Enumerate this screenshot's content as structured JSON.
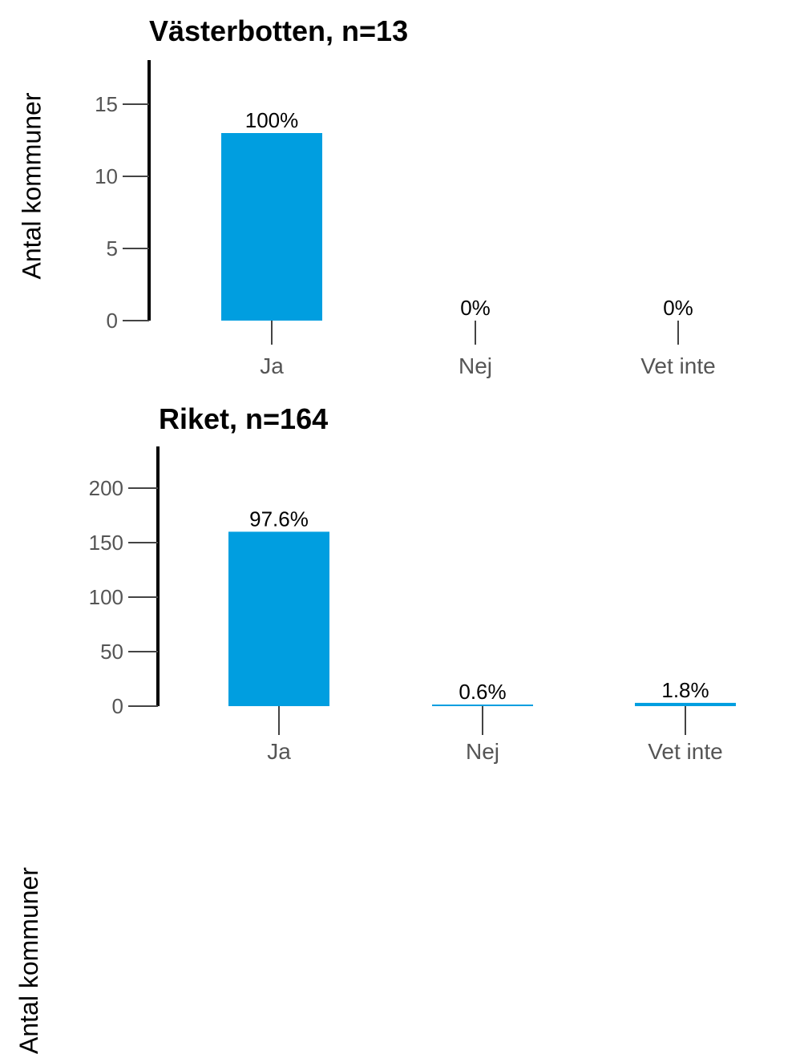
{
  "chart_data": [
    {
      "type": "bar",
      "title": "Västerbotten, n=13",
      "ylabel": "Antal kommuner",
      "xlabel": "",
      "categories": [
        "Ja",
        "Nej",
        "Vet inte"
      ],
      "values": [
        13,
        0,
        0
      ],
      "data_labels": [
        "100%",
        "0%",
        "0%"
      ],
      "yticks": [
        0,
        5,
        10,
        15
      ],
      "ylim": [
        0,
        17.5
      ],
      "bar_color": "#009ee0",
      "grid": false
    },
    {
      "type": "bar",
      "title": "Riket, n=164",
      "ylabel": "Antal kommuner",
      "xlabel": "",
      "categories": [
        "Ja",
        "Nej",
        "Vet inte"
      ],
      "values": [
        160,
        1,
        3
      ],
      "data_labels": [
        "97.6%",
        "0.6%",
        "1.8%"
      ],
      "yticks": [
        0,
        50,
        100,
        150,
        200
      ],
      "ylim": [
        0,
        240
      ],
      "bar_color": "#009ee0",
      "grid": false
    }
  ]
}
